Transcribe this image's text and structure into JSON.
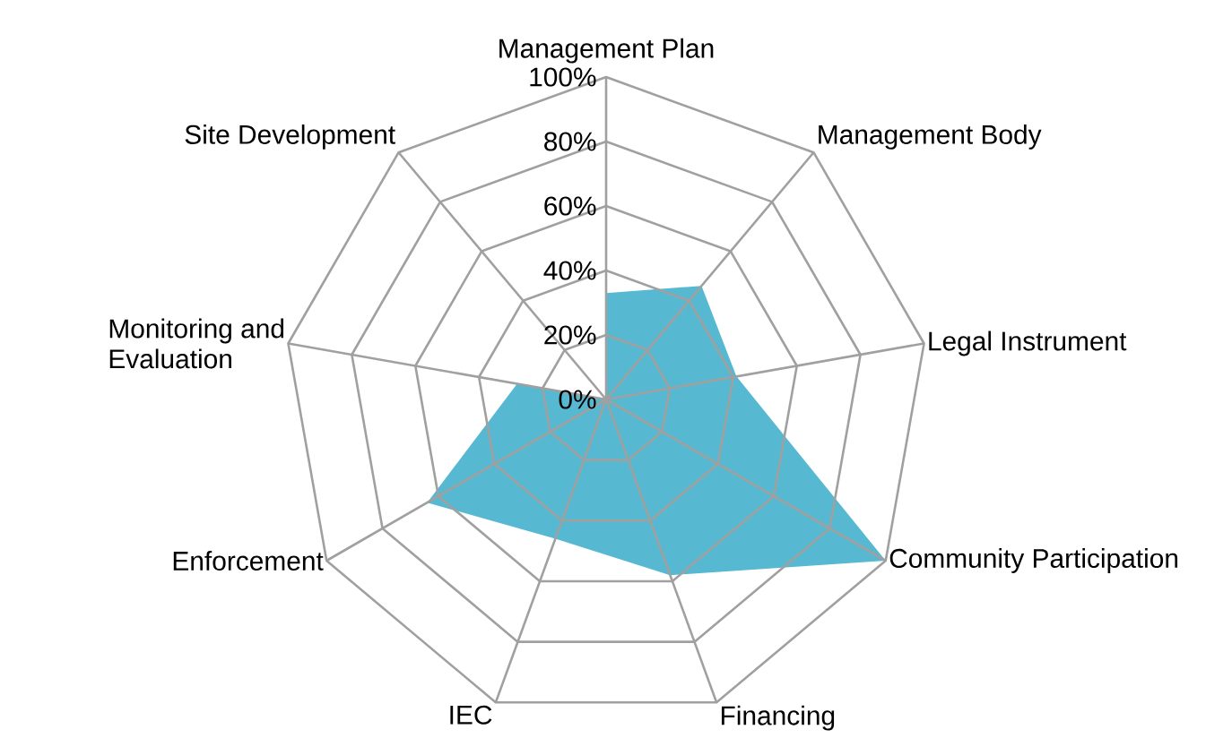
{
  "chart_data": {
    "type": "radar",
    "categories": [
      "Management Plan",
      "Management Body",
      "Legal Instrument",
      "Community Participation",
      "Financing",
      "IEC",
      "Enforcement",
      "Monitoring and Evaluation",
      "Site Development"
    ],
    "series": [
      {
        "color": "#56b9d1",
        "values": [
          33,
          46,
          41,
          100,
          58,
          46,
          64,
          28,
          0
        ]
      }
    ],
    "ylim": [
      0,
      100
    ],
    "yticks": [
      {
        "value": 0,
        "label": "0%"
      },
      {
        "value": 20,
        "label": "20%"
      },
      {
        "value": 40,
        "label": "40%"
      },
      {
        "value": 60,
        "label": "60%"
      },
      {
        "value": 80,
        "label": "80%"
      },
      {
        "value": 100,
        "label": "100%"
      }
    ],
    "grid": true
  }
}
